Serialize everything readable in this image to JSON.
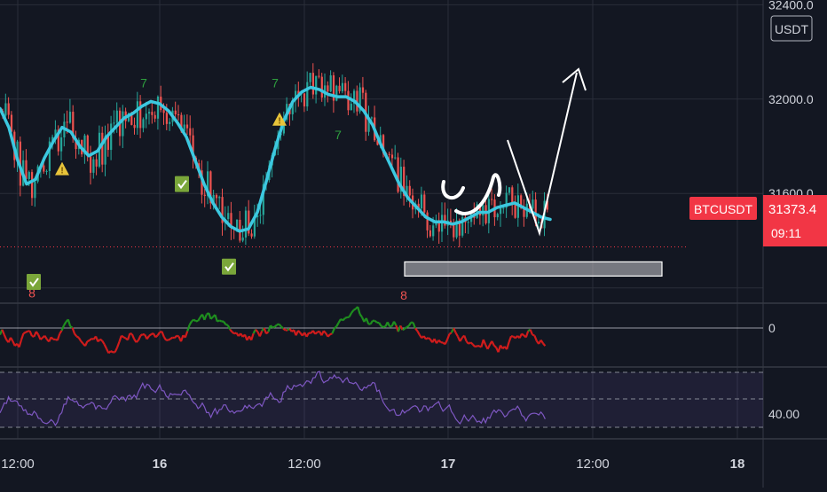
{
  "chart_data": {
    "type": "candlestick",
    "symbol": "BTCUSDT",
    "currency_label": "USDT",
    "price": {
      "ylim": [
        31150,
        32420
      ],
      "y_ticks": [
        "32400.0",
        "32000.0",
        "31600.0"
      ],
      "last_price": 31373.4,
      "last_price_label": "31373.4",
      "countdown": "09:11",
      "support_zone": [
        31250,
        31310
      ],
      "ma_series": [
        [
          0,
          31960
        ],
        [
          10,
          31880
        ],
        [
          20,
          31740
        ],
        [
          30,
          31640
        ],
        [
          40,
          31660
        ],
        [
          50,
          31750
        ],
        [
          60,
          31820
        ],
        [
          70,
          31880
        ],
        [
          80,
          31860
        ],
        [
          90,
          31800
        ],
        [
          100,
          31760
        ],
        [
          110,
          31780
        ],
        [
          120,
          31840
        ],
        [
          130,
          31880
        ],
        [
          140,
          31920
        ],
        [
          150,
          31940
        ],
        [
          160,
          31970
        ],
        [
          170,
          31990
        ],
        [
          180,
          31980
        ],
        [
          190,
          31950
        ],
        [
          200,
          31900
        ],
        [
          210,
          31840
        ],
        [
          220,
          31740
        ],
        [
          230,
          31640
        ],
        [
          240,
          31560
        ],
        [
          250,
          31500
        ],
        [
          260,
          31460
        ],
        [
          270,
          31440
        ],
        [
          280,
          31450
        ],
        [
          290,
          31520
        ],
        [
          300,
          31650
        ],
        [
          310,
          31790
        ],
        [
          320,
          31910
        ],
        [
          330,
          31990
        ],
        [
          340,
          32030
        ],
        [
          350,
          32050
        ],
        [
          360,
          32040
        ],
        [
          370,
          32020
        ],
        [
          380,
          32010
        ],
        [
          390,
          32010
        ],
        [
          400,
          31990
        ],
        [
          410,
          31950
        ],
        [
          420,
          31890
        ],
        [
          430,
          31800
        ],
        [
          440,
          31720
        ],
        [
          450,
          31640
        ],
        [
          460,
          31580
        ],
        [
          470,
          31540
        ],
        [
          480,
          31500
        ],
        [
          490,
          31480
        ],
        [
          500,
          31480
        ],
        [
          510,
          31470
        ],
        [
          520,
          31480
        ],
        [
          530,
          31500
        ],
        [
          540,
          31520
        ],
        [
          550,
          31520
        ],
        [
          560,
          31540
        ],
        [
          570,
          31550
        ],
        [
          580,
          31560
        ],
        [
          590,
          31540
        ],
        [
          600,
          31520
        ],
        [
          610,
          31500
        ],
        [
          620,
          31490
        ]
      ],
      "td_labels": [
        {
          "text": "7",
          "at": [
            162,
            32050
          ]
        },
        {
          "text": "7",
          "at": [
            310,
            32050
          ]
        },
        {
          "text": "7",
          "at": [
            381,
            31830
          ]
        },
        {
          "text": "8",
          "at": [
            36,
            31160
          ]
        },
        {
          "text": "8",
          "at": [
            455,
            31150
          ]
        }
      ],
      "warning_markers": [
        [
          70,
          31700
        ],
        [
          315,
          31910
        ]
      ],
      "check_markers": [
        [
          38,
          31225
        ],
        [
          205,
          31640
        ],
        [
          258,
          31290
        ]
      ]
    },
    "macd_like": {
      "zero_tick": "0"
    },
    "rsi": {
      "y_tick": "40.00"
    },
    "x_ticks": [
      {
        "label": "12:00",
        "bold": false
      },
      {
        "label": "16",
        "bold": true
      },
      {
        "label": "12:00",
        "bold": false
      },
      {
        "label": "17",
        "bold": true
      },
      {
        "label": "12:00",
        "bold": false
      },
      {
        "label": "18",
        "bold": true
      }
    ],
    "colors": {
      "background": "#131722",
      "grid": "#2a2e39",
      "up": "#26a69a",
      "down": "#ef5350",
      "ma": "#3cc8e0",
      "rsi": "#7e57c2",
      "osc_up": "#1f8f1f",
      "osc_down": "#d01c1c",
      "price_tag": "#f23645",
      "drawing": "#ffffff"
    }
  }
}
